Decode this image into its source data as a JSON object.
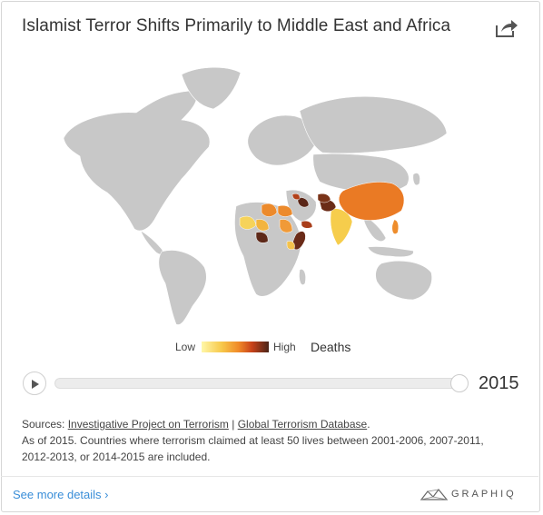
{
  "title": "Islamist Terror Shifts Primarily to Middle East and Africa",
  "icons": {
    "share": "share-arrow-icon",
    "play": "play-icon",
    "brand": "graphiq-logo-icon"
  },
  "legend": {
    "low": "Low",
    "high": "High",
    "metric": "Deaths"
  },
  "timeline": {
    "year": "2015",
    "position": 1.0
  },
  "notes": {
    "sources_prefix": "Sources: ",
    "source1": "Investigative Project on Terrorism",
    "separator": " | ",
    "source2": "Global Terrorism Database",
    "source_suffix": ".",
    "line2": "As of 2015. Countries where terrorism claimed at least 50 lives between 2001-2006, 2007-2011, 2012-2013, or 2014-2015 are included."
  },
  "footer": {
    "more": "See more details ›",
    "brand": "GRAPHIQ"
  },
  "colors": {
    "land": "#c8c8c8",
    "low": "#fff7a8",
    "mid": "#f08a28",
    "high": "#4a2418",
    "link": "#3a8ed8"
  },
  "map_data": {
    "highlighted_countries": [
      {
        "name": "China",
        "level": "mid-orange"
      },
      {
        "name": "India",
        "level": "yellow"
      },
      {
        "name": "Pakistan",
        "level": "dark-brown"
      },
      {
        "name": "Afghanistan",
        "level": "dark-brown"
      },
      {
        "name": "Iraq",
        "level": "dark-brown"
      },
      {
        "name": "Syria",
        "level": "red-brown"
      },
      {
        "name": "Egypt",
        "level": "orange"
      },
      {
        "name": "Libya",
        "level": "orange"
      },
      {
        "name": "Mali",
        "level": "yellow"
      },
      {
        "name": "Nigeria",
        "level": "dark-brown"
      },
      {
        "name": "Niger",
        "level": "orange"
      },
      {
        "name": "Somalia",
        "level": "dark-brown"
      },
      {
        "name": "Yemen",
        "level": "red-brown"
      },
      {
        "name": "Sudan",
        "level": "orange"
      },
      {
        "name": "Philippines",
        "level": "orange"
      },
      {
        "name": "Kenya",
        "level": "yellow"
      }
    ]
  }
}
